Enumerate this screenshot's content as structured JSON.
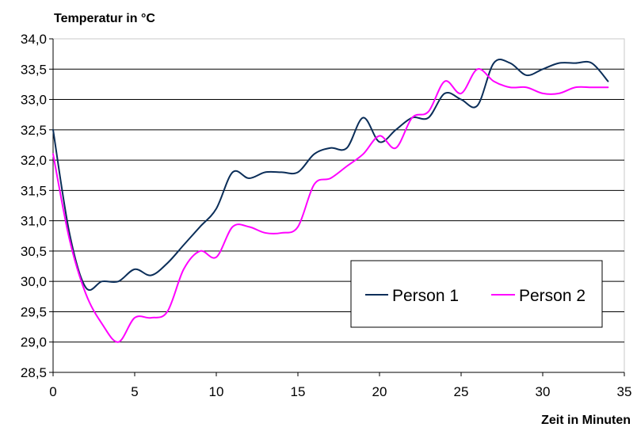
{
  "chart_data": {
    "type": "line",
    "title": "",
    "ylabel": "Temperatur in °C",
    "xlabel": "Zeit in Minuten",
    "xlim": [
      0,
      35
    ],
    "ylim": [
      28.5,
      34.0
    ],
    "x_ticks": [
      "0",
      "5",
      "10",
      "15",
      "20",
      "25",
      "30",
      "35"
    ],
    "y_ticks": [
      "28,5",
      "29,0",
      "29,5",
      "30,0",
      "30,5",
      "31,0",
      "31,5",
      "32,0",
      "32,5",
      "33,0",
      "33,5",
      "34,0"
    ],
    "grid": "horizontal",
    "legend_position": "bottom-right",
    "series": [
      {
        "name": "Person 1",
        "color": "#0b2e59",
        "x": [
          0,
          1,
          2,
          3,
          4,
          5,
          6,
          7,
          8,
          9,
          10,
          11,
          12,
          13,
          14,
          15,
          16,
          17,
          18,
          19,
          20,
          21,
          22,
          23,
          24,
          25,
          26,
          27,
          28,
          29,
          30,
          31,
          32,
          33,
          34
        ],
        "y": [
          32.5,
          30.8,
          29.9,
          30.0,
          30.0,
          30.2,
          30.1,
          30.3,
          30.6,
          30.9,
          31.2,
          31.8,
          31.7,
          31.8,
          31.8,
          31.8,
          32.1,
          32.2,
          32.2,
          32.7,
          32.3,
          32.5,
          32.7,
          32.7,
          33.1,
          33.0,
          32.9,
          33.6,
          33.6,
          33.4,
          33.5,
          33.6,
          33.6,
          33.6,
          33.3
        ]
      },
      {
        "name": "Person 2",
        "color": "#ff00ff",
        "x": [
          0,
          1,
          2,
          3,
          4,
          5,
          6,
          7,
          8,
          9,
          10,
          11,
          12,
          13,
          14,
          15,
          16,
          17,
          18,
          19,
          20,
          21,
          22,
          23,
          24,
          25,
          26,
          27,
          28,
          29,
          30,
          31,
          32,
          33,
          34
        ],
        "y": [
          32.1,
          30.7,
          29.8,
          29.3,
          29.0,
          29.4,
          29.4,
          29.5,
          30.2,
          30.5,
          30.4,
          30.9,
          30.9,
          30.8,
          30.8,
          30.9,
          31.6,
          31.7,
          31.9,
          32.1,
          32.4,
          32.2,
          32.7,
          32.8,
          33.3,
          33.1,
          33.5,
          33.3,
          33.2,
          33.2,
          33.1,
          33.1,
          33.2,
          33.2,
          33.2
        ]
      }
    ]
  }
}
